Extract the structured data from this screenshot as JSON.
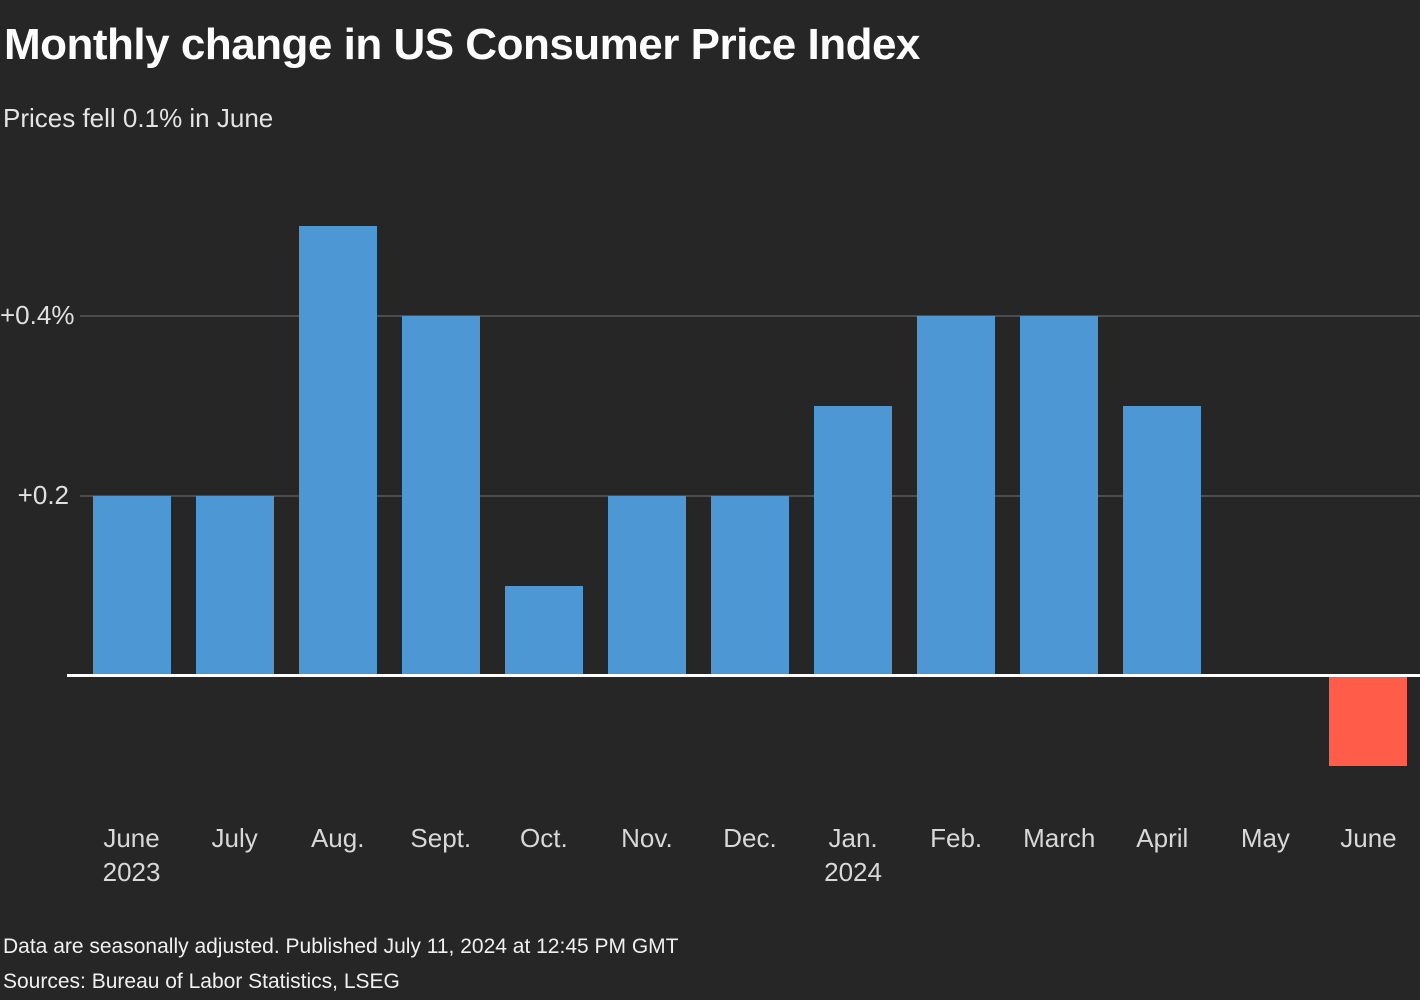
{
  "title": "Monthly change in US Consumer Price Index",
  "subtitle": "Prices fell 0.1% in June",
  "footer": {
    "note": "Data are seasonally adjusted. Published July 11, 2024 at 12:45 PM GMT",
    "sources": "Sources: Bureau of Labor Statistics, LSEG"
  },
  "colors": {
    "background": "#262626",
    "bar_positive": "#4e97d5",
    "bar_negative": "#ff5c49",
    "gridline": "#4d4d4d",
    "zero_line": "#ffffff",
    "title_text": "#fcfcfc",
    "axis_text": "#d8d8d8"
  },
  "chart_data": {
    "type": "bar",
    "title": "Monthly change in US Consumer Price Index",
    "subtitle": "Prices fell 0.1% in June",
    "xlabel": "",
    "ylabel": "",
    "unit": "%",
    "grid": true,
    "ylim": [
      -0.15,
      0.55
    ],
    "y_ticks": [
      {
        "value": 0.4,
        "label": "+0.4%"
      },
      {
        "value": 0.2,
        "label": "+0.2"
      }
    ],
    "categories": [
      {
        "label": "June",
        "sublabel": "2023"
      },
      {
        "label": "July",
        "sublabel": ""
      },
      {
        "label": "Aug.",
        "sublabel": ""
      },
      {
        "label": "Sept.",
        "sublabel": ""
      },
      {
        "label": "Oct.",
        "sublabel": ""
      },
      {
        "label": "Nov.",
        "sublabel": ""
      },
      {
        "label": "Dec.",
        "sublabel": ""
      },
      {
        "label": "Jan.",
        "sublabel": "2024"
      },
      {
        "label": "Feb.",
        "sublabel": ""
      },
      {
        "label": "March",
        "sublabel": ""
      },
      {
        "label": "April",
        "sublabel": ""
      },
      {
        "label": "May",
        "sublabel": ""
      },
      {
        "label": "June",
        "sublabel": ""
      }
    ],
    "values": [
      0.2,
      0.2,
      0.5,
      0.4,
      0.1,
      0.2,
      0.2,
      0.3,
      0.4,
      0.4,
      0.3,
      0.0,
      -0.1
    ]
  }
}
